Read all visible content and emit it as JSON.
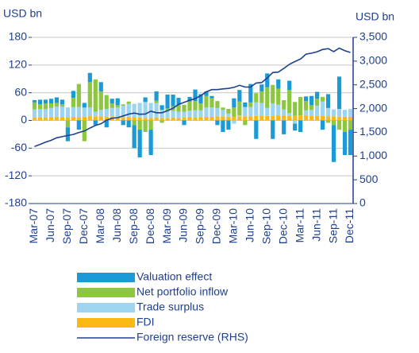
{
  "chart_data": {
    "type": "bar",
    "y_label": "USD bn",
    "y2_label": "USD bn",
    "categories": [
      "Mar-07",
      null,
      null,
      "Jun-07",
      null,
      null,
      "Sep-07",
      null,
      null,
      "Dec-07",
      null,
      null,
      "Mar-08",
      null,
      null,
      "Jun-08",
      null,
      null,
      "Sep-08",
      null,
      null,
      "Dec-08",
      null,
      null,
      "Mar-09",
      null,
      null,
      "Jun-09",
      null,
      null,
      "Sep-09",
      null,
      null,
      "Dec-09",
      null,
      null,
      "Mar-10",
      null,
      null,
      "Jun-10",
      null,
      null,
      "Sep-10",
      null,
      null,
      "Dec-10",
      null,
      null,
      "Mar-11",
      null,
      null,
      "Jun-11",
      null,
      null,
      "Sep-11",
      null,
      null,
      "Dec-11"
    ],
    "series": [
      {
        "name": "Valuation effect",
        "color": "#1a9ad6",
        "values": [
          5,
          10,
          8,
          10,
          12,
          10,
          -30,
          15,
          -20,
          10,
          20,
          -10,
          20,
          -15,
          10,
          15,
          -10,
          -15,
          -50,
          -60,
          10,
          -55,
          20,
          10,
          30,
          25,
          15,
          -10,
          10,
          25,
          20,
          10,
          5,
          -10,
          -25,
          -20,
          20,
          25,
          10,
          40,
          -40,
          15,
          30,
          -40,
          20,
          -30,
          20,
          -15,
          -25,
          10,
          20,
          15,
          -20,
          30,
          -80,
          70,
          -50,
          -55
        ]
      },
      {
        "name": "Net portfolio inflow",
        "color": "#8dc63f",
        "values": [
          15,
          10,
          12,
          10,
          8,
          5,
          -15,
          20,
          50,
          -45,
          55,
          70,
          40,
          30,
          10,
          5,
          3,
          5,
          -10,
          -20,
          -25,
          -20,
          5,
          -5,
          5,
          10,
          15,
          15,
          20,
          20,
          15,
          25,
          20,
          15,
          5,
          10,
          20,
          30,
          -10,
          10,
          20,
          25,
          45,
          40,
          35,
          20,
          50,
          30,
          40,
          20,
          10,
          15,
          10,
          -5,
          -10,
          -20,
          -25,
          -20
        ]
      },
      {
        "name": "Trade surplus",
        "color": "#9dd4f0",
        "values": [
          18,
          18,
          19,
          20,
          22,
          23,
          22,
          21,
          22,
          20,
          18,
          10,
          14,
          17,
          18,
          20,
          25,
          28,
          29,
          32,
          35,
          33,
          32,
          18,
          16,
          15,
          14,
          13,
          14,
          16,
          15,
          20,
          20,
          18,
          14,
          7,
          -7,
          2,
          20,
          20,
          29,
          28,
          17,
          27,
          23,
          13,
          6,
          -7,
          0,
          11,
          13,
          22,
          31,
          18,
          15,
          17,
          15,
          17
        ]
      },
      {
        "name": "FDI",
        "color": "#fdb913",
        "values": [
          6,
          7,
          6,
          7,
          8,
          7,
          6,
          8,
          7,
          8,
          10,
          9,
          9,
          8,
          9,
          8,
          7,
          8,
          7,
          6,
          5,
          5,
          6,
          5,
          5,
          6,
          5,
          6,
          7,
          6,
          7,
          8,
          8,
          9,
          9,
          8,
          8,
          9,
          9,
          9,
          10,
          10,
          10,
          10,
          11,
          11,
          10,
          10,
          11,
          11,
          10,
          10,
          10,
          9,
          9,
          8,
          8,
          8
        ]
      },
      {
        "name": "Foreign reserve (RHS)",
        "color": "#1f3f8f",
        "type": "line",
        "axis": "y2",
        "values": [
          1202,
          1246,
          1292,
          1332,
          1385,
          1408,
          1434,
          1455,
          1497,
          1528,
          1590,
          1647,
          1682,
          1757,
          1797,
          1809,
          1845,
          1884,
          1906,
          1880,
          1885,
          1946,
          1913,
          1912,
          1954,
          2009,
          2089,
          2132,
          2175,
          2211,
          2273,
          2354,
          2399,
          2399,
          2415,
          2425,
          2447,
          2490,
          2454,
          2454,
          2538,
          2548,
          2648,
          2760,
          2768,
          2847,
          2932,
          2991,
          3045,
          3146,
          3166,
          3197,
          3245,
          3262,
          3201,
          3274,
          3221,
          3181
        ]
      }
    ],
    "ylim": [
      -180,
      180
    ],
    "yticks": [
      180,
      120,
      60,
      0,
      -60,
      -120,
      -180
    ],
    "y2lim": [
      0,
      3500
    ],
    "y2ticks": [
      {
        "value": 3500,
        "label": "3,500"
      },
      {
        "value": 3000,
        "label": "3,000"
      },
      {
        "value": 2500,
        "label": "2,500"
      },
      {
        "value": 2000,
        "label": "2,000"
      },
      {
        "value": 1500,
        "label": "1,500"
      },
      {
        "value": 1000,
        "label": "1,000"
      },
      500,
      0
    ],
    "grid": true,
    "stacked": true,
    "legend": "bottom"
  }
}
